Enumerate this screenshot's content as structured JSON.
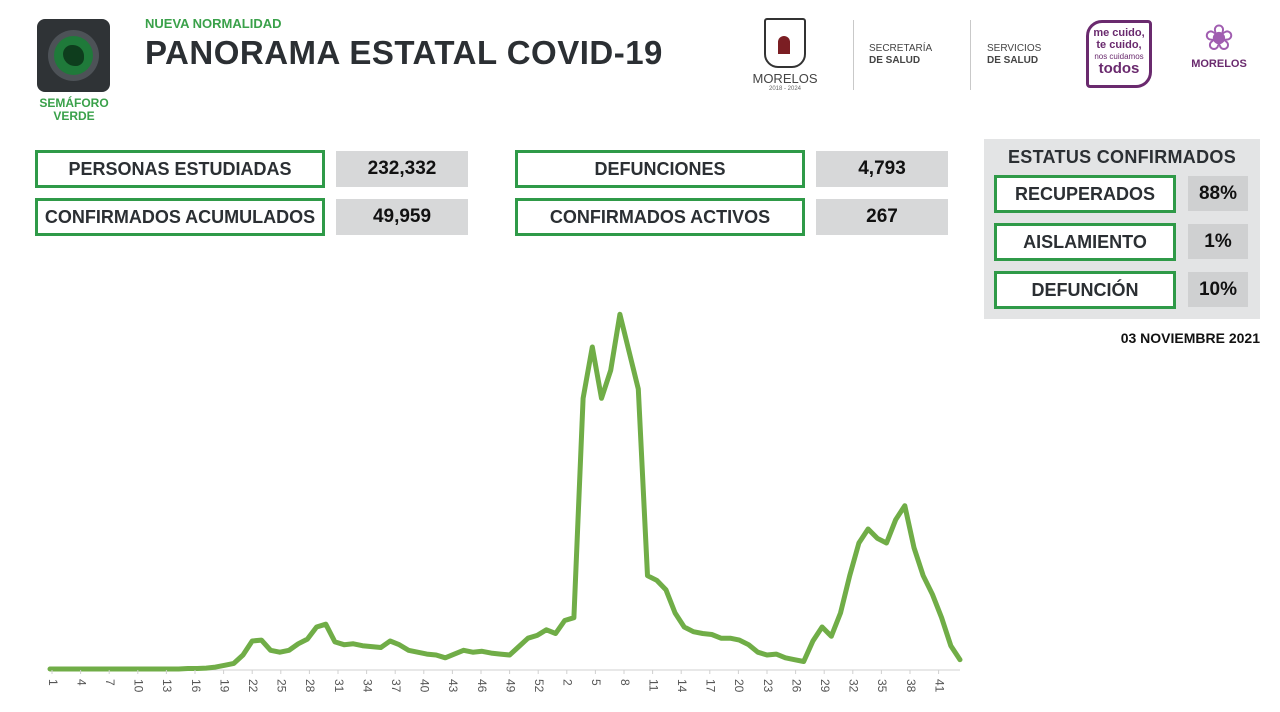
{
  "semaforo": {
    "label_line1": "SEMÁFORO",
    "label_line2": "VERDE",
    "color": "#1f7a3a"
  },
  "header": {
    "eyebrow": "NUEVA NORMALIDAD",
    "title": "PANORAMA ESTATAL COVID-19"
  },
  "logos": {
    "morelos_name": "MORELOS",
    "morelos_years": "2018 - 2024",
    "secretaria_line1": "SECRETARÍA",
    "secretaria_line2": "DE SALUD",
    "servicios_line1": "SERVICIOS",
    "servicios_line2": "DE SALUD",
    "cuido_line1": "me cuido,",
    "cuido_line2": "te cuido,",
    "cuido_line3": "nos cuidamos",
    "cuido_line4": "todos",
    "morelos2_name": "MORELOS"
  },
  "stats": {
    "personas_label": "PERSONAS ESTUDIADAS",
    "personas_value": "232,332",
    "confirmados_label": "CONFIRMADOS ACUMULADOS",
    "confirmados_value": "49,959",
    "defunciones_label": "DEFUNCIONES",
    "defunciones_value": "4,793",
    "activos_label": "CONFIRMADOS ACTIVOS",
    "activos_value": "267"
  },
  "status": {
    "title": "ESTATUS CONFIRMADOS",
    "items": [
      {
        "label": "RECUPERADOS",
        "value": "88%"
      },
      {
        "label": "AISLAMIENTO",
        "value": "1%"
      },
      {
        "label": "DEFUNCIÓN",
        "value": "10%"
      }
    ]
  },
  "date": "03 NOVIEMBRE 2021",
  "colors": {
    "accent_green": "#2f9a48",
    "line": "#70ad47",
    "value_bg": "#d7d8d9",
    "panel_bg": "#e3e4e5"
  },
  "chart_data": {
    "type": "line",
    "title": "",
    "xlabel": "",
    "ylabel": "",
    "x_tick_labels": [
      "1",
      "4",
      "7",
      "10",
      "13",
      "16",
      "19",
      "22",
      "25",
      "28",
      "31",
      "34",
      "37",
      "40",
      "43",
      "46",
      "49",
      "52",
      "2",
      "5",
      "8",
      "11",
      "14",
      "17",
      "20",
      "23",
      "26",
      "29",
      "32",
      "35",
      "38",
      "41"
    ],
    "grid": false,
    "legend": "none",
    "series": [
      {
        "values": [
          0,
          0,
          0,
          0,
          0,
          0,
          0,
          0,
          0,
          0,
          0,
          0,
          0,
          0,
          0,
          0.5,
          0.5,
          1,
          2,
          4,
          6,
          15,
          30,
          31,
          20,
          18,
          20,
          27,
          32,
          45,
          48,
          29,
          26,
          27,
          25,
          24,
          23,
          30,
          26,
          20,
          18,
          16,
          15,
          12,
          16,
          20,
          18,
          19,
          17,
          16,
          15,
          24,
          33,
          36,
          42,
          38,
          52,
          55,
          290,
          345,
          290,
          320,
          380,
          340,
          300,
          100,
          95,
          85,
          60,
          45,
          40,
          38,
          37,
          33,
          33,
          31,
          26,
          18,
          15,
          16,
          12,
          10,
          8,
          30,
          45,
          35,
          60,
          100,
          135,
          150,
          140,
          135,
          160,
          175,
          130,
          100,
          80,
          55,
          25,
          10
        ]
      }
    ]
  }
}
